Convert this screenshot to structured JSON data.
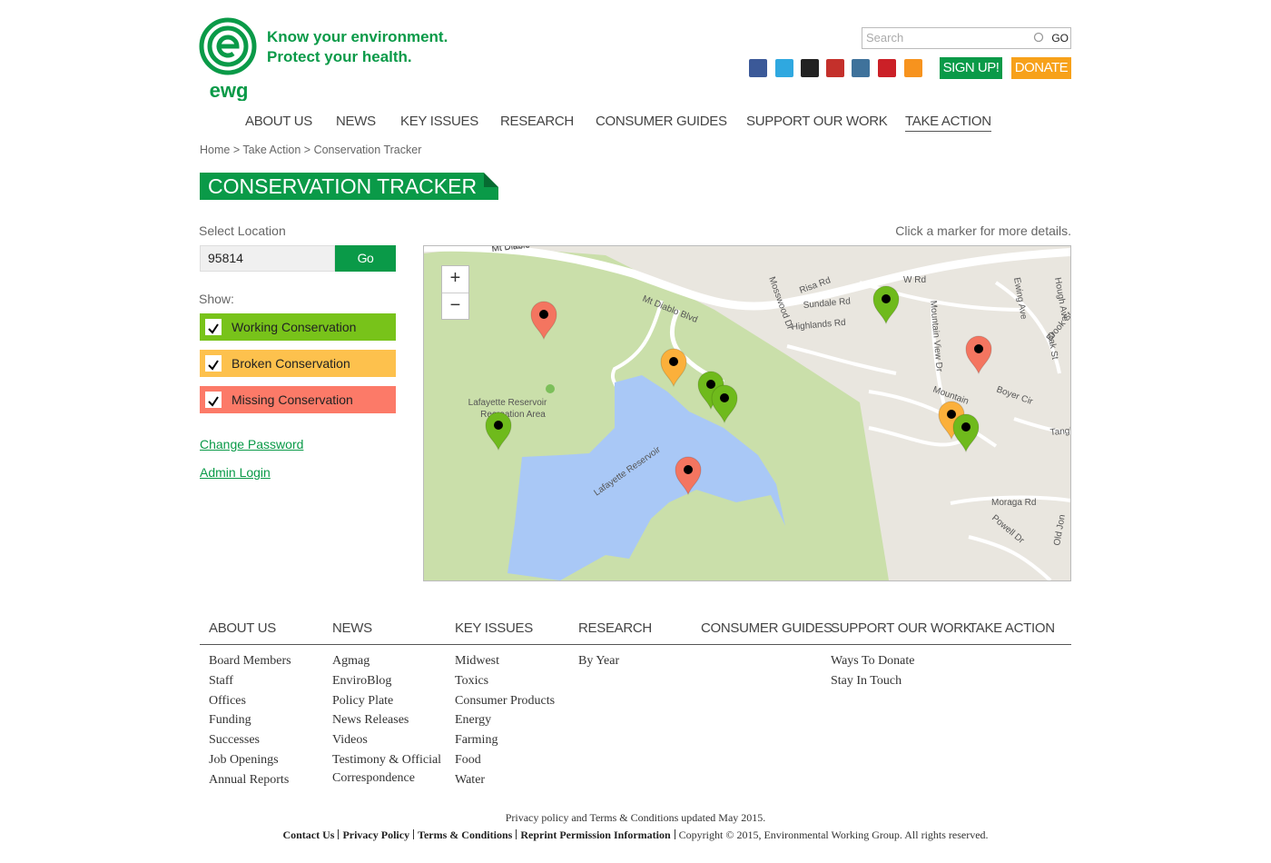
{
  "header": {
    "logo_text": "ewg",
    "tagline": [
      "Know your environment.",
      "Protect your health."
    ],
    "search_placeholder": "Search",
    "search_button": "GO",
    "signup": "SIGN UP!",
    "donate": "DONATE"
  },
  "nav": [
    "ABOUT US",
    "NEWS",
    "KEY ISSUES",
    "RESEARCH",
    "CONSUMER GUIDES",
    "SUPPORT OUR WORK",
    "TAKE ACTION"
  ],
  "breadcrumb": [
    "Home",
    "Take Action",
    "Conservation Tracker"
  ],
  "page_title": "CONSERVATION TRACKER",
  "sidebar": {
    "select_label": "Select Location",
    "location": "95814",
    "go": "Go",
    "show_label": "Show:",
    "filters": [
      "Working  Conservation",
      "Broken  Conservation",
      "Missing Conservation"
    ],
    "links": [
      "Change Password",
      "Admin Login"
    ]
  },
  "map": {
    "hint": "Click a marker for more details.",
    "zoom_in": "+",
    "zoom_out": "−",
    "labels": [
      "Mt Diablo",
      "Mt Diablo Blvd",
      "Mt Diablo Blvd",
      "Risa Rd",
      "Mosswood Dr",
      "Sundale Rd",
      "Highlands Rd",
      "W Rd",
      "Mountain View Dr",
      "Ewing Ave",
      "Hough Ave",
      "Brook St",
      "Oak St",
      "Boyer Cir",
      "Mountain",
      "Tanglewo",
      "Moraga Rd",
      "Powell Dr",
      "Old Jon",
      "Lafayette Reservoir",
      "Recreation Area",
      "Lafayette Reservoir"
    ]
  },
  "footer": {
    "columns": [
      {
        "heading": "ABOUT US",
        "links": [
          "Board Members",
          "Staff",
          "Offices",
          "Funding",
          "Successes",
          "Job Openings",
          "Annual Reports"
        ]
      },
      {
        "heading": "NEWS",
        "links": [
          "Agmag",
          "EnviroBlog",
          "Policy Plate",
          "News Releases",
          "Videos",
          "Testimony & Official Correspondence"
        ]
      },
      {
        "heading": "KEY ISSUES",
        "links": [
          "Midwest",
          "Toxics",
          "Consumer Products",
          "Energy",
          "Farming",
          "Food",
          "Water"
        ]
      },
      {
        "heading": "RESEARCH",
        "links": [
          "By Year"
        ]
      },
      {
        "heading": "CONSUMER GUIDES"
      },
      {
        "heading": "SUPPORT OUR WORK",
        "links": [
          "Ways To Donate",
          "Stay In Touch"
        ]
      },
      {
        "heading": "TAKE ACTION"
      }
    ],
    "updated": "Privacy policy and Terms & Conditions updated May 2015.",
    "links": [
      "Contact Us",
      "Privacy Policy",
      "Terms & Conditions",
      "Reprint Permission Information"
    ],
    "copyright": "Copyright © 2015, Environmental Working Group. All rights reserved."
  }
}
